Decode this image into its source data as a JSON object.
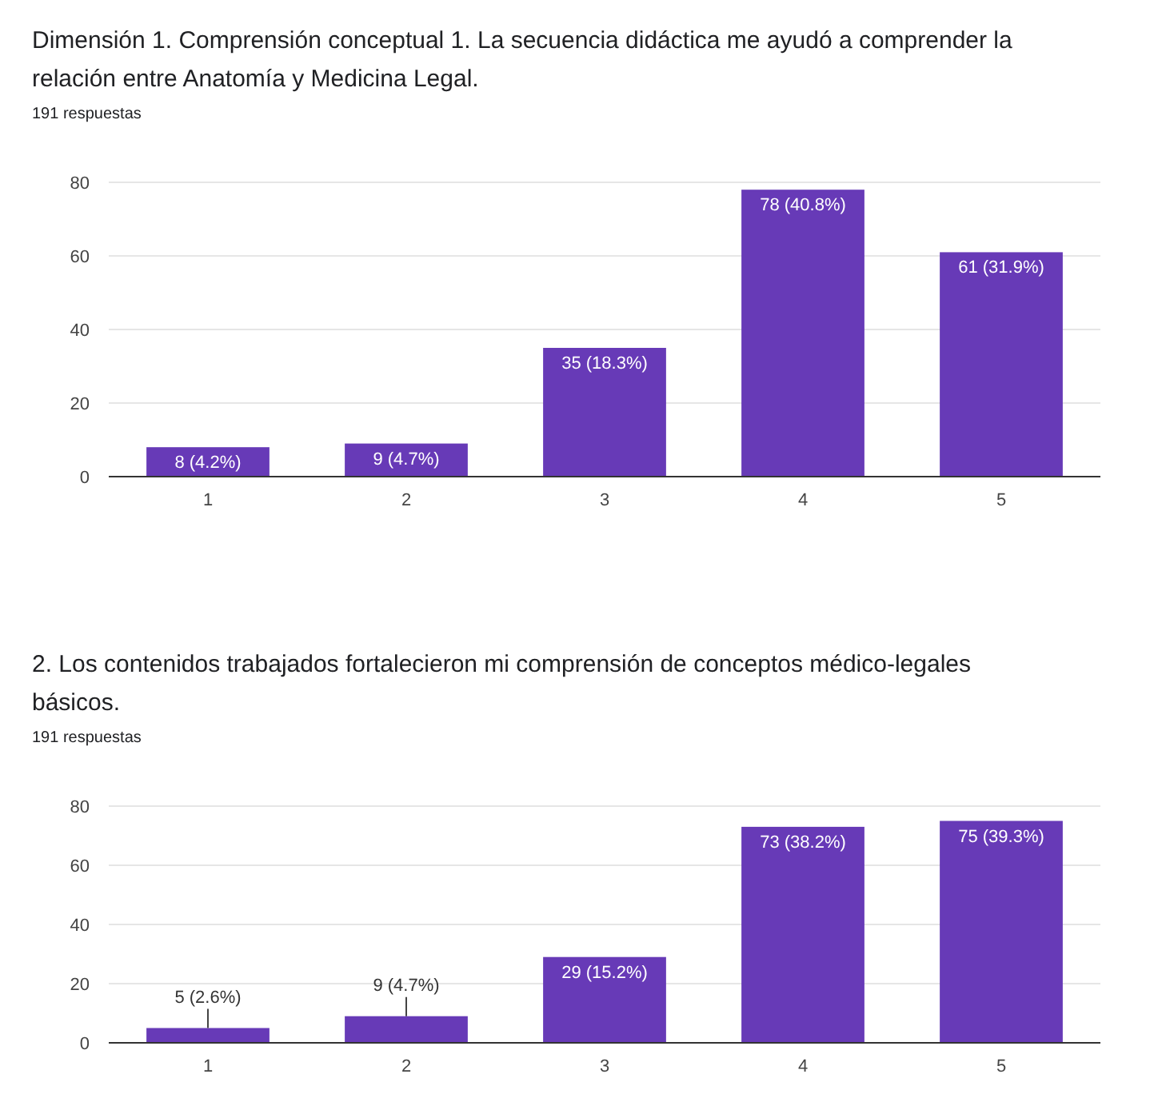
{
  "chart_data": [
    {
      "type": "bar",
      "title": "Dimensión 1. Comprensión conceptual  1.  La secuencia didáctica me ayudó a comprender la relación entre Anatomía y Medicina Legal.",
      "subtitle": "191 respuestas",
      "categories": [
        "1",
        "2",
        "3",
        "4",
        "5"
      ],
      "values": [
        8,
        9,
        35,
        78,
        61
      ],
      "value_labels": [
        "8 (4.2%)",
        "9 (4.7%)",
        "35 (18.3%)",
        "78 (40.8%)",
        "61 (31.9%)"
      ],
      "color": "#673ab7",
      "ylim": [
        0,
        80
      ],
      "yticks": [
        0,
        20,
        40,
        60,
        80
      ],
      "grid": "y"
    },
    {
      "type": "bar",
      "title": "2. Los contenidos trabajados fortalecieron mi comprensión de conceptos médico-legales básicos.",
      "subtitle": "191 respuestas",
      "categories": [
        "1",
        "2",
        "3",
        "4",
        "5"
      ],
      "values": [
        5,
        9,
        29,
        73,
        75
      ],
      "value_labels": [
        "5 (2.6%)",
        "9 (4.7%)",
        "29 (15.2%)",
        "73 (38.2%)",
        "75 (39.3%)"
      ],
      "color": "#673ab7",
      "ylim": [
        0,
        80
      ],
      "yticks": [
        0,
        20,
        40,
        60,
        80
      ],
      "grid": "y"
    }
  ]
}
